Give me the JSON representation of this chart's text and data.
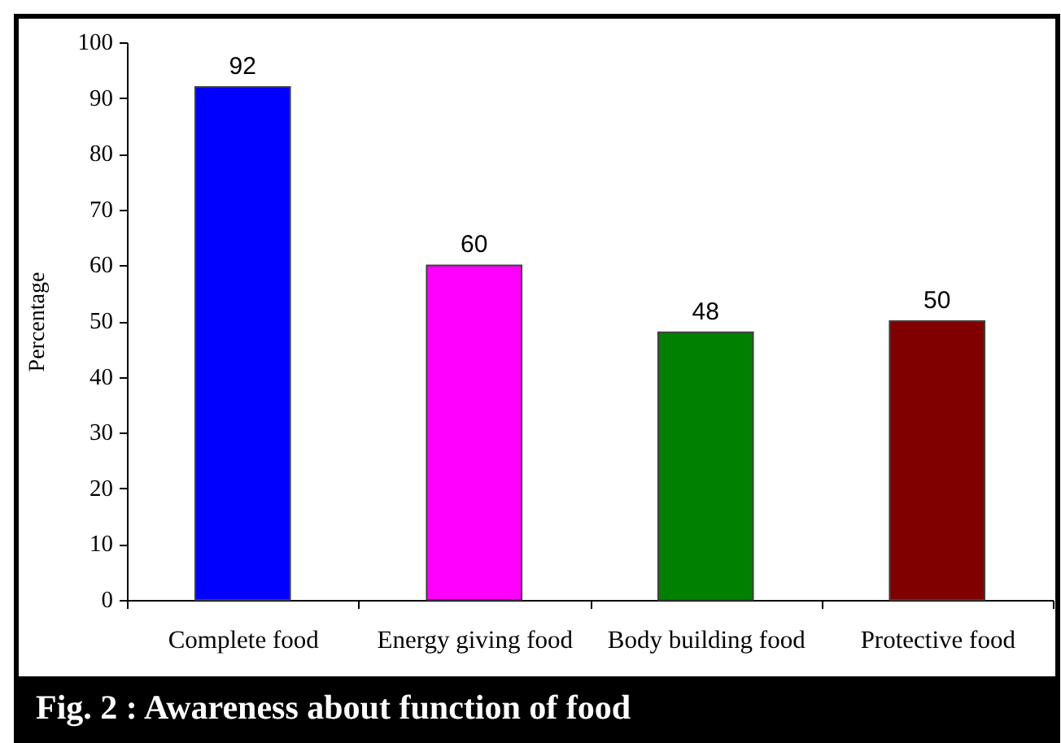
{
  "chart_data": {
    "type": "bar",
    "title": "Fig. 2 : Awareness about function of food",
    "ylabel": "Percentage",
    "categories": [
      "Complete food",
      "Energy giving food",
      "Body building food",
      "Protective food"
    ],
    "values": [
      92,
      60,
      48,
      50
    ],
    "colors": [
      "#0000ff",
      "#ff00ff",
      "#008000",
      "#800000"
    ],
    "ylim": [
      0,
      100
    ],
    "yticks": [
      0,
      10,
      20,
      30,
      40,
      50,
      60,
      70,
      80,
      90,
      100
    ],
    "data_labels": true
  }
}
